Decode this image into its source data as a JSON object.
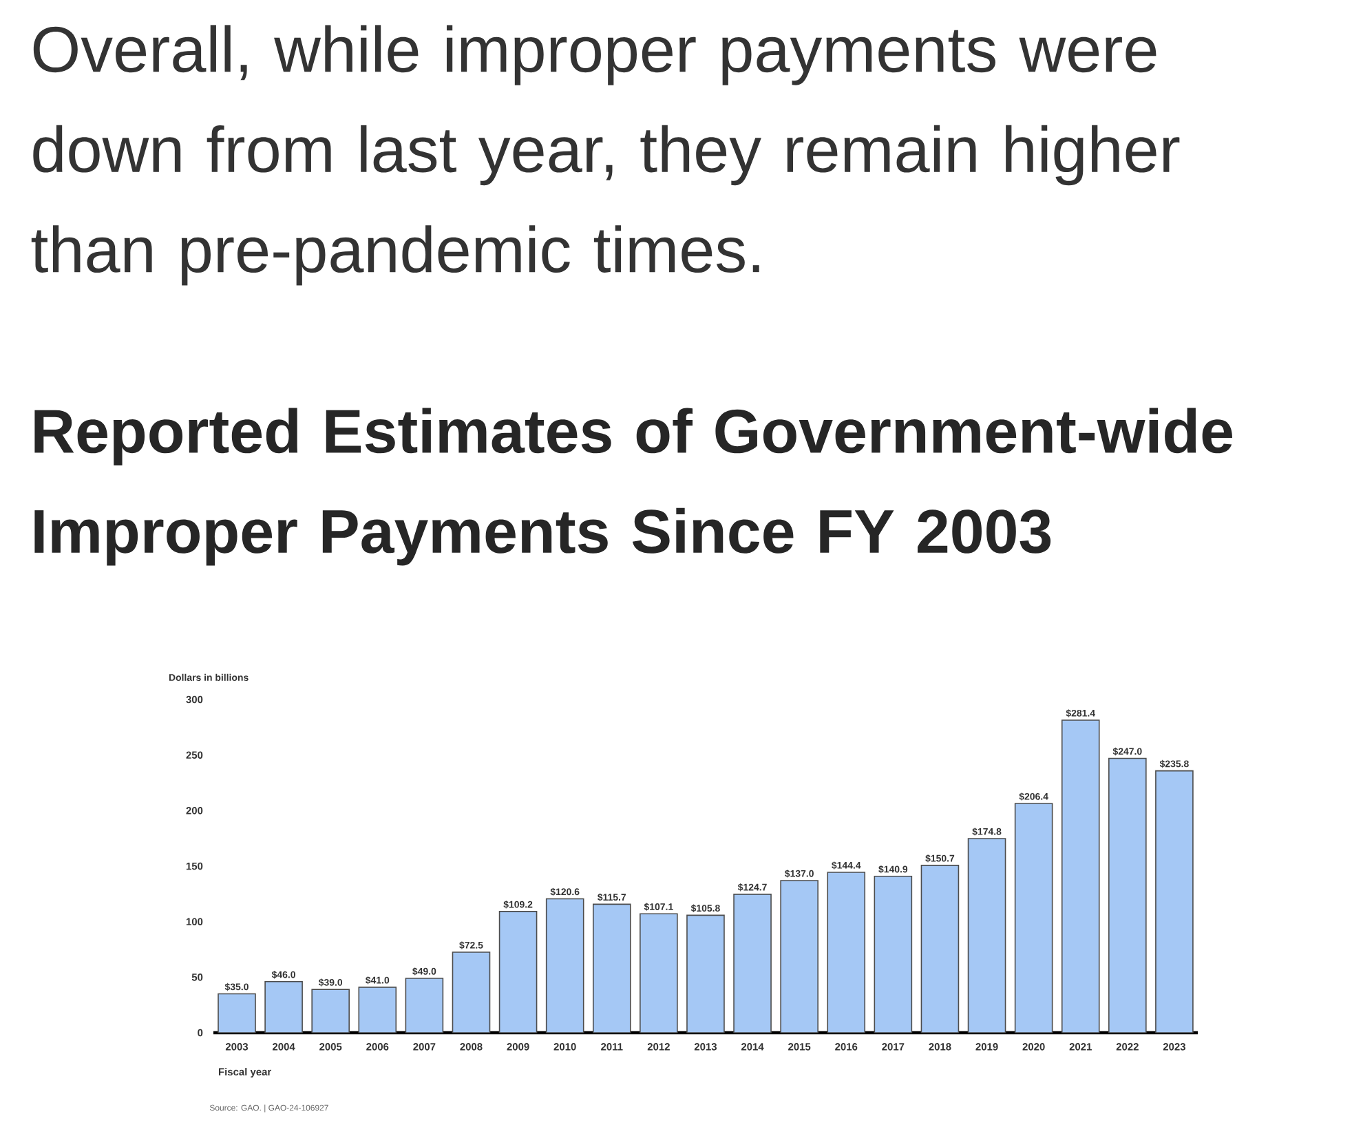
{
  "chart_data": {
    "type": "bar",
    "annotations": [
      "Overall, while improper payments were down from last year, they remain higher than pre-pandemic times.",
      "Source: GAO.  |  GAO-24-106927"
    ],
    "title": "Reported Estimates of Government-wide Improper Payments Since FY 2003",
    "ylabel": "Dollars in billions",
    "xlabel": "Fiscal year",
    "categories": [
      "2003",
      "2004",
      "2005",
      "2006",
      "2007",
      "2008",
      "2009",
      "2010",
      "2011",
      "2012",
      "2013",
      "2014",
      "2015",
      "2016",
      "2017",
      "2018",
      "2019",
      "2020",
      "2021",
      "2022",
      "2023"
    ],
    "values": [
      35.0,
      46.0,
      39.0,
      41.0,
      49.0,
      72.5,
      109.2,
      120.6,
      115.7,
      107.1,
      105.8,
      124.7,
      137.0,
      144.4,
      140.9,
      150.7,
      174.8,
      206.4,
      281.4,
      247.0,
      235.8
    ],
    "value_labels": [
      "$35.0",
      "$46.0",
      "$39.0",
      "$41.0",
      "$49.0",
      "$72.5",
      "$109.2",
      "$120.6",
      "$115.7",
      "$107.1",
      "$105.8",
      "$124.7",
      "$137.0",
      "$144.4",
      "$140.9",
      "$150.7",
      "$174.8",
      "$206.4",
      "$281.4",
      "$247.0",
      "$235.8"
    ],
    "color": "#a5c8f5",
    "ylim": [
      0,
      300
    ],
    "yticks": [
      0,
      50,
      100,
      150,
      200,
      250,
      300
    ],
    "grid": false
  }
}
